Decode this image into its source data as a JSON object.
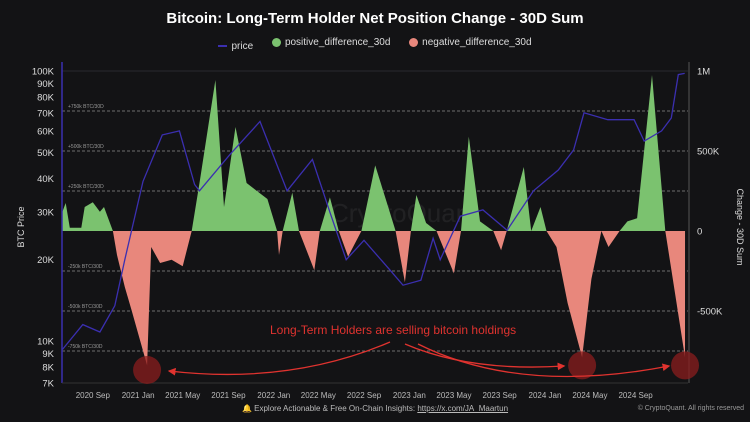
{
  "chart_data": {
    "type": "area+line",
    "title": "Bitcoin: Long-Term Holder Net Position Change - 30D Sum",
    "legend": [
      "price",
      "positive_difference_30d",
      "negative_difference_30d"
    ],
    "legend_placement": "top-center",
    "colors": {
      "price": "#3b2fb0",
      "positive": "#7bc26f",
      "negative": "#e8877c",
      "annotation": "#e0332f"
    },
    "ylabel_left": "BTC Price",
    "ylabel_right": "Change - 30D Sum",
    "left_axis": {
      "scale": "log",
      "ylim": [
        7000,
        115000
      ],
      "ticks": [
        7000,
        8000,
        9000,
        10000,
        20000,
        30000,
        40000,
        50000,
        60000,
        70000,
        80000,
        90000,
        100000
      ],
      "tick_labels": [
        "7K",
        "8K",
        "9K",
        "10K",
        "20K",
        "30K",
        "40K",
        "50K",
        "60K",
        "70K",
        "80K",
        "90K",
        "100K"
      ]
    },
    "right_axis": {
      "ylim": [
        -950,
        1050
      ],
      "unit": "K BTC",
      "ticks": [
        -500,
        0,
        500,
        1000
      ],
      "tick_labels": [
        "-500K",
        "0",
        "500K",
        "1M"
      ]
    },
    "xlim": [
      "2020-06-10",
      "2025-01-20"
    ],
    "x_ticks": [
      "2020-09-01",
      "2021-01-01",
      "2021-05-01",
      "2021-09-01",
      "2022-01-01",
      "2022-05-01",
      "2022-09-01",
      "2023-01-01",
      "2023-05-01",
      "2023-09-01",
      "2024-01-01",
      "2024-05-01",
      "2024-09-01"
    ],
    "x_tick_labels": [
      "2020 Sep",
      "2021 Jan",
      "2021 May",
      "2021 Sep",
      "2022 Jan",
      "2022 May",
      "2022 Sep",
      "2023 Jan",
      "2023 May",
      "2023 Sep",
      "2024 Jan",
      "2024 May",
      "2024 Sep"
    ],
    "reference_lines": [
      {
        "value": 750,
        "label": "+750k BTC/30D"
      },
      {
        "value": 500,
        "label": "+500k BTC/30D"
      },
      {
        "value": 250,
        "label": "+250k BTC/30D"
      },
      {
        "value": -250,
        "label": "-250k BTC/30D"
      },
      {
        "value": -500,
        "label": "-500k BTC/30D"
      },
      {
        "value": -750,
        "label": "-750k BTC/30D"
      }
    ],
    "price": [
      [
        "2020-06-11",
        9300
      ],
      [
        "2020-08-05",
        11500
      ],
      [
        "2020-09-20",
        10800
      ],
      [
        "2020-10-30",
        13500
      ],
      [
        "2020-11-26",
        20000
      ],
      [
        "2021-01-14",
        39000
      ],
      [
        "2021-03-07",
        58000
      ],
      [
        "2021-04-22",
        60000
      ],
      [
        "2021-06-02",
        38000
      ],
      [
        "2021-06-15",
        36000
      ],
      [
        "2021-09-05",
        49000
      ],
      [
        "2021-11-25",
        65000
      ],
      [
        "2022-02-06",
        36000
      ],
      [
        "2022-04-15",
        47000
      ],
      [
        "2022-06-01",
        30000
      ],
      [
        "2022-07-15",
        20000
      ],
      [
        "2022-09-01",
        23600
      ],
      [
        "2022-11-10",
        18300
      ],
      [
        "2022-12-15",
        16100
      ],
      [
        "2023-02-01",
        16800
      ],
      [
        "2023-03-06",
        24000
      ],
      [
        "2023-03-25",
        20000
      ],
      [
        "2023-05-18",
        29000
      ],
      [
        "2023-07-18",
        30600
      ],
      [
        "2023-09-21",
        25700
      ],
      [
        "2023-12-01",
        36000
      ],
      [
        "2024-02-06",
        43000
      ],
      [
        "2024-03-18",
        51000
      ],
      [
        "2024-04-15",
        70000
      ],
      [
        "2024-06-18",
        66000
      ],
      [
        "2024-08-28",
        66000
      ],
      [
        "2024-09-24",
        55000
      ],
      [
        "2024-11-10",
        60000
      ],
      [
        "2024-12-06",
        67000
      ],
      [
        "2024-12-25",
        97000
      ],
      [
        "2025-01-11",
        98000
      ]
    ],
    "net_change_30d_k": [
      [
        "2020-06-11",
        120
      ],
      [
        "2020-06-20",
        175
      ],
      [
        "2020-07-01",
        20
      ],
      [
        "2020-08-01",
        20
      ],
      [
        "2020-08-10",
        150
      ],
      [
        "2020-09-01",
        180
      ],
      [
        "2020-09-20",
        120
      ],
      [
        "2020-10-01",
        150
      ],
      [
        "2020-10-25",
        0
      ],
      [
        "2020-11-05",
        -150
      ],
      [
        "2020-11-26",
        -350
      ],
      [
        "2020-12-15",
        -500
      ],
      [
        "2021-01-25",
        -840
      ],
      [
        "2021-02-05",
        -100
      ],
      [
        "2021-03-01",
        -200
      ],
      [
        "2021-04-01",
        -180
      ],
      [
        "2021-05-01",
        -220
      ],
      [
        "2021-05-25",
        0
      ],
      [
        "2021-06-15",
        300
      ],
      [
        "2021-07-28",
        944
      ],
      [
        "2021-08-20",
        150
      ],
      [
        "2021-09-20",
        650
      ],
      [
        "2021-10-20",
        300
      ],
      [
        "2021-12-15",
        200
      ],
      [
        "2022-01-10",
        0
      ],
      [
        "2022-01-15",
        -150
      ],
      [
        "2022-01-25",
        0
      ],
      [
        "2022-02-20",
        240
      ],
      [
        "2022-03-10",
        0
      ],
      [
        "2022-04-20",
        -245
      ],
      [
        "2022-05-05",
        0
      ],
      [
        "2022-06-01",
        210
      ],
      [
        "2022-06-25",
        0
      ],
      [
        "2022-07-20",
        -160
      ],
      [
        "2022-08-25",
        0
      ],
      [
        "2022-10-01",
        410
      ],
      [
        "2022-11-05",
        150
      ],
      [
        "2022-11-25",
        0
      ],
      [
        "2022-12-20",
        -320
      ],
      [
        "2023-01-05",
        0
      ],
      [
        "2023-01-20",
        225
      ],
      [
        "2023-02-15",
        50
      ],
      [
        "2023-03-15",
        0
      ],
      [
        "2023-05-01",
        -265
      ],
      [
        "2023-05-20",
        0
      ],
      [
        "2023-06-10",
        590
      ],
      [
        "2023-07-10",
        60
      ],
      [
        "2023-08-15",
        0
      ],
      [
        "2023-09-05",
        -120
      ],
      [
        "2023-09-20",
        0
      ],
      [
        "2023-11-05",
        400
      ],
      [
        "2023-11-25",
        0
      ],
      [
        "2023-12-20",
        150
      ],
      [
        "2024-01-05",
        0
      ],
      [
        "2024-02-01",
        -100
      ],
      [
        "2024-03-02",
        -450
      ],
      [
        "2024-04-10",
        -790
      ],
      [
        "2024-05-05",
        -300
      ],
      [
        "2024-06-01",
        0
      ],
      [
        "2024-06-20",
        -100
      ],
      [
        "2024-07-20",
        0
      ],
      [
        "2024-08-10",
        60
      ],
      [
        "2024-09-05",
        80
      ],
      [
        "2024-10-15",
        975
      ],
      [
        "2024-11-20",
        0
      ],
      [
        "2024-12-10",
        -300
      ],
      [
        "2025-01-12",
        -790
      ]
    ],
    "annotation": {
      "text": "Long-Term Holders are selling bitcoin holdings",
      "highlight_dates": [
        "2021-01-25",
        "2024-04-10",
        "2025-01-12"
      ]
    }
  },
  "watermark": "CryptoQuant",
  "footer": {
    "text": "Explore Actionable & Free On-Chain Insights: ",
    "link": "https://x.com/JA_Maartun",
    "copyright": "© CryptoQuant. All rights reserved"
  }
}
